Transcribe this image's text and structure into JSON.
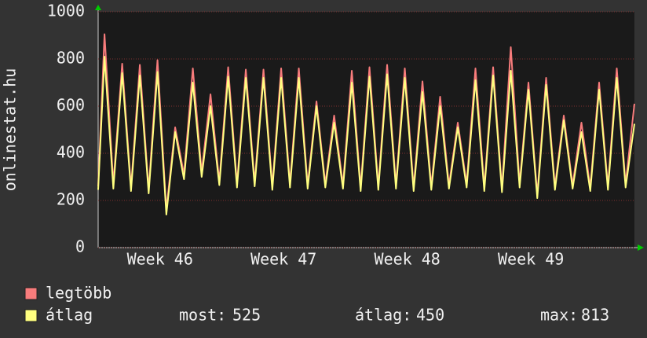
{
  "chart_data": {
    "type": "line",
    "y_axis_label": "onlinestat.hu",
    "x": [
      0,
      0.36,
      0.86,
      1.36,
      1.86,
      2.36,
      2.86,
      3.36,
      3.86,
      4.36,
      4.86,
      5.36,
      5.86,
      6.36,
      6.86,
      7.36,
      7.86,
      8.36,
      8.86,
      9.36,
      9.86,
      10.36,
      10.86,
      11.36,
      11.86,
      12.36,
      12.86,
      13.36,
      13.86,
      14.36,
      14.86,
      15.36,
      15.86,
      16.36,
      16.86,
      17.36,
      17.86,
      18.36,
      18.86,
      19.36,
      19.86,
      20.36,
      20.86,
      21.36,
      21.86,
      22.36,
      22.86,
      23.36,
      23.86,
      24.36,
      24.86,
      25.36,
      25.86,
      26.36,
      26.86,
      27.36,
      27.86,
      28.36,
      28.86,
      29.36,
      29.86,
      30.36
    ],
    "series": [
      {
        "name": "legtöbb",
        "color": "#f87c7c",
        "values": [
          260,
          905,
          270,
          780,
          255,
          775,
          245,
          795,
          160,
          510,
          310,
          760,
          320,
          650,
          280,
          765,
          270,
          755,
          275,
          755,
          260,
          760,
          270,
          760,
          265,
          620,
          270,
          560,
          265,
          750,
          255,
          765,
          260,
          775,
          265,
          760,
          255,
          705,
          260,
          640,
          265,
          530,
          270,
          760,
          255,
          765,
          250,
          850,
          270,
          700,
          225,
          720,
          260,
          560,
          265,
          530,
          255,
          700,
          260,
          760,
          270,
          610
        ]
      },
      {
        "name": "átlag",
        "color": "#ffff80",
        "values": [
          245,
          810,
          250,
          740,
          240,
          730,
          230,
          745,
          140,
          490,
          290,
          700,
          300,
          600,
          265,
          725,
          255,
          720,
          260,
          720,
          245,
          720,
          255,
          720,
          250,
          600,
          255,
          530,
          250,
          700,
          240,
          725,
          245,
          735,
          250,
          720,
          240,
          660,
          245,
          600,
          250,
          510,
          255,
          710,
          240,
          730,
          235,
          750,
          255,
          670,
          210,
          690,
          245,
          540,
          250,
          490,
          240,
          670,
          245,
          720,
          255,
          525
        ]
      }
    ],
    "xlim": [
      0,
      30.36
    ],
    "xticks": [
      {
        "value": 3.5,
        "label": "Week 46"
      },
      {
        "value": 10.5,
        "label": "Week 47"
      },
      {
        "value": 17.5,
        "label": "Week 48"
      },
      {
        "value": 24.5,
        "label": "Week 49"
      }
    ],
    "ylim": [
      0,
      1000
    ],
    "yticks": [
      0,
      200,
      400,
      600,
      800,
      1000
    ],
    "grid": true,
    "legend_stats": [
      {
        "label": "most:",
        "value": 525
      },
      {
        "label": "átlag:",
        "value": 450
      },
      {
        "label": "max:",
        "value": 813
      }
    ]
  }
}
